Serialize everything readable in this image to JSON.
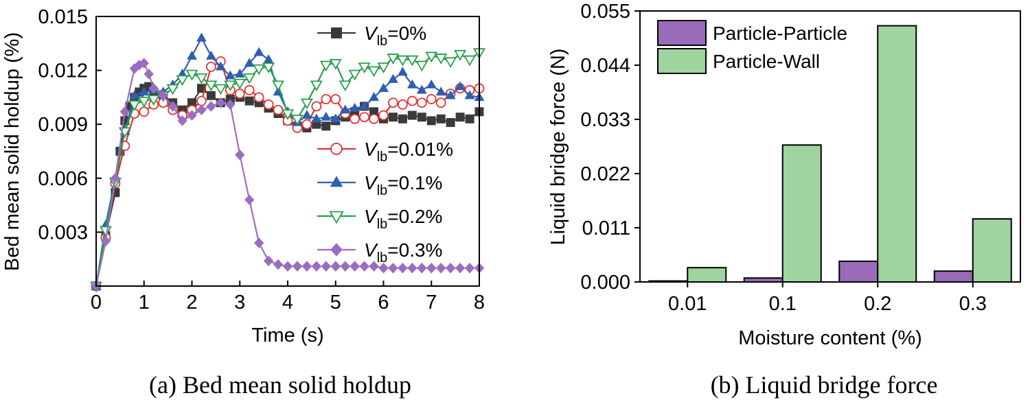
{
  "captions": {
    "a": "(a) Bed mean solid holdup",
    "b": "(b) Liquid bridge force"
  },
  "chart_data": [
    {
      "type": "line",
      "title": "Bed mean solid holdup",
      "xlabel": "Time (s)",
      "ylabel": "Bed mean solid holdup (%)",
      "xlim": [
        0,
        8
      ],
      "ylim": [
        0,
        0.015
      ],
      "xticks": [
        "0",
        "1",
        "2",
        "3",
        "4",
        "5",
        "6",
        "7",
        "8"
      ],
      "yticks": [
        "0.003",
        "0.006",
        "0.009",
        "0.012",
        "0.015"
      ],
      "legend_position": "right",
      "series": [
        {
          "name": "V_lb=0%",
          "legend_prefix": "V",
          "legend_sub": "lb",
          "legend_suffix": "=0%",
          "color": "#3a3a3a",
          "marker": "square",
          "x": [
            0,
            0.2,
            0.4,
            0.5,
            0.6,
            0.7,
            0.8,
            0.9,
            1.0,
            1.1,
            1.2,
            1.4,
            1.6,
            1.8,
            2.0,
            2.2,
            2.4,
            2.6,
            2.8,
            3.0,
            3.2,
            3.4,
            3.6,
            3.8,
            4.0,
            4.2,
            4.4,
            4.6,
            4.8,
            5.0,
            5.2,
            5.4,
            5.6,
            5.8,
            6.0,
            6.2,
            6.4,
            6.6,
            6.8,
            7.0,
            7.2,
            7.4,
            7.6,
            7.8,
            8.0
          ],
          "y": [
            0,
            0.0028,
            0.0052,
            0.0075,
            0.0092,
            0.01,
            0.0105,
            0.0108,
            0.011,
            0.0111,
            0.0108,
            0.0106,
            0.0102,
            0.0098,
            0.0102,
            0.011,
            0.0106,
            0.0102,
            0.0104,
            0.0105,
            0.0103,
            0.0102,
            0.0099,
            0.0096,
            0.0092,
            0.0089,
            0.0088,
            0.009,
            0.0089,
            0.0092,
            0.0094,
            0.0097,
            0.01,
            0.0097,
            0.0093,
            0.0094,
            0.0093,
            0.0095,
            0.0094,
            0.0092,
            0.0093,
            0.0091,
            0.0094,
            0.0093,
            0.0097
          ]
        },
        {
          "name": "V_lb=0.01%",
          "legend_prefix": "V",
          "legend_sub": "lb",
          "legend_suffix": "=0.01%",
          "color": "#e0322f",
          "marker": "circle-open",
          "x": [
            0,
            0.2,
            0.4,
            0.6,
            0.8,
            1.0,
            1.2,
            1.4,
            1.6,
            1.8,
            2.0,
            2.2,
            2.4,
            2.6,
            2.8,
            3.0,
            3.2,
            3.4,
            3.6,
            3.8,
            4.0,
            4.2,
            4.4,
            4.6,
            4.8,
            5.0,
            5.2,
            5.4,
            5.6,
            5.8,
            6.0,
            6.2,
            6.4,
            6.6,
            6.8,
            7.0,
            7.2,
            7.4,
            7.6,
            7.8,
            8.0
          ],
          "y": [
            0,
            0.0027,
            0.0057,
            0.0078,
            0.0096,
            0.0097,
            0.0101,
            0.0102,
            0.0098,
            0.0095,
            0.0098,
            0.0103,
            0.0122,
            0.0125,
            0.0109,
            0.0107,
            0.0109,
            0.0105,
            0.0101,
            0.0098,
            0.0092,
            0.0088,
            0.009,
            0.01,
            0.0104,
            0.0104,
            0.0096,
            0.0093,
            0.0094,
            0.0093,
            0.0095,
            0.0102,
            0.0101,
            0.0103,
            0.0102,
            0.0104,
            0.0102,
            0.0107,
            0.011,
            0.0109,
            0.011
          ]
        },
        {
          "name": "V_lb=0.1%",
          "legend_prefix": "V",
          "legend_sub": "lb",
          "legend_suffix": "=0.1%",
          "color": "#2e5fb0",
          "marker": "triangle-up-filled",
          "x": [
            0,
            0.2,
            0.4,
            0.6,
            0.8,
            1.0,
            1.2,
            1.4,
            1.6,
            1.8,
            2.0,
            2.2,
            2.4,
            2.6,
            2.8,
            3.0,
            3.2,
            3.4,
            3.6,
            3.8,
            4.0,
            4.2,
            4.4,
            4.6,
            4.8,
            5.0,
            5.2,
            5.4,
            5.6,
            5.8,
            6.0,
            6.2,
            6.4,
            6.6,
            6.8,
            7.0,
            7.2,
            7.4,
            7.6,
            7.8,
            8.0
          ],
          "y": [
            0,
            0.0034,
            0.006,
            0.0086,
            0.0106,
            0.0108,
            0.0109,
            0.0108,
            0.0112,
            0.0118,
            0.0128,
            0.0138,
            0.0128,
            0.0122,
            0.0117,
            0.0118,
            0.0124,
            0.013,
            0.0126,
            0.0108,
            0.0097,
            0.0091,
            0.0095,
            0.0093,
            0.0094,
            0.0093,
            0.0098,
            0.0099,
            0.01,
            0.0105,
            0.011,
            0.0115,
            0.0119,
            0.0112,
            0.0109,
            0.0112,
            0.0108,
            0.0106,
            0.0111,
            0.0106,
            0.0105
          ]
        },
        {
          "name": "V_lb=0.2%",
          "legend_prefix": "V",
          "legend_sub": "lb",
          "legend_suffix": "=0.2%",
          "color": "#27a048",
          "marker": "triangle-down-open",
          "x": [
            0,
            0.2,
            0.4,
            0.6,
            0.8,
            1.0,
            1.2,
            1.4,
            1.6,
            1.8,
            2.0,
            2.2,
            2.4,
            2.6,
            2.8,
            3.0,
            3.2,
            3.4,
            3.6,
            3.8,
            4.0,
            4.2,
            4.4,
            4.6,
            4.8,
            5.0,
            5.2,
            5.4,
            5.6,
            5.8,
            6.0,
            6.2,
            6.4,
            6.6,
            6.8,
            7.0,
            7.2,
            7.4,
            7.6,
            7.8,
            8.0
          ],
          "y": [
            0,
            0.0031,
            0.0058,
            0.0086,
            0.0101,
            0.0103,
            0.0104,
            0.0106,
            0.011,
            0.0115,
            0.0118,
            0.0116,
            0.0112,
            0.011,
            0.0112,
            0.0113,
            0.0116,
            0.0121,
            0.0122,
            0.0112,
            0.0096,
            0.0093,
            0.0102,
            0.0112,
            0.0123,
            0.0124,
            0.0112,
            0.0118,
            0.0122,
            0.012,
            0.0122,
            0.0127,
            0.0126,
            0.0126,
            0.0123,
            0.0128,
            0.0127,
            0.0125,
            0.0129,
            0.0126,
            0.013
          ]
        },
        {
          "name": "V_lb=0.3%",
          "legend_prefix": "V",
          "legend_sub": "lb",
          "legend_suffix": "=0.3%",
          "color": "#9b6dc1",
          "marker": "diamond-filled",
          "x": [
            0,
            0.2,
            0.4,
            0.6,
            0.8,
            0.9,
            1.0,
            1.1,
            1.2,
            1.4,
            1.6,
            1.8,
            2.0,
            2.2,
            2.4,
            2.6,
            2.8,
            3.0,
            3.2,
            3.4,
            3.6,
            3.8,
            4.0,
            4.2,
            4.4,
            4.6,
            4.8,
            5.0,
            5.2,
            5.4,
            5.6,
            5.8,
            6.0,
            6.2,
            6.4,
            6.6,
            6.8,
            7.0,
            7.2,
            7.4,
            7.6,
            7.8,
            8.0
          ],
          "y": [
            0,
            0.0025,
            0.006,
            0.0097,
            0.0121,
            0.0123,
            0.0124,
            0.0118,
            0.011,
            0.0106,
            0.01,
            0.0092,
            0.0095,
            0.0098,
            0.01,
            0.0102,
            0.0101,
            0.0073,
            0.0048,
            0.0024,
            0.0014,
            0.0012,
            0.0011,
            0.0011,
            0.0011,
            0.0011,
            0.0011,
            0.0011,
            0.0011,
            0.0011,
            0.0011,
            0.0011,
            0.001,
            0.001,
            0.001,
            0.001,
            0.001,
            0.001,
            0.001,
            0.001,
            0.001,
            0.001,
            0.001
          ]
        }
      ]
    },
    {
      "type": "bar",
      "title": "Liquid bridge force",
      "xlabel": "Moisture content (%)",
      "ylabel": "Liquid bridge force (N)",
      "categories": [
        "0.01",
        "0.1",
        "0.2",
        "0.3"
      ],
      "ylim": [
        0,
        0.055
      ],
      "yticks": [
        "0.000",
        "0.011",
        "0.022",
        "0.033",
        "0.044",
        "0.055"
      ],
      "legend_position": "top-left",
      "series": [
        {
          "name": "Particle-Particle",
          "color": "#9a6bb8",
          "values": [
            0.0002,
            0.0008,
            0.0042,
            0.0022
          ]
        },
        {
          "name": "Particle-Wall",
          "color": "#9fd49f",
          "values": [
            0.0029,
            0.0278,
            0.052,
            0.0128
          ]
        }
      ]
    }
  ]
}
